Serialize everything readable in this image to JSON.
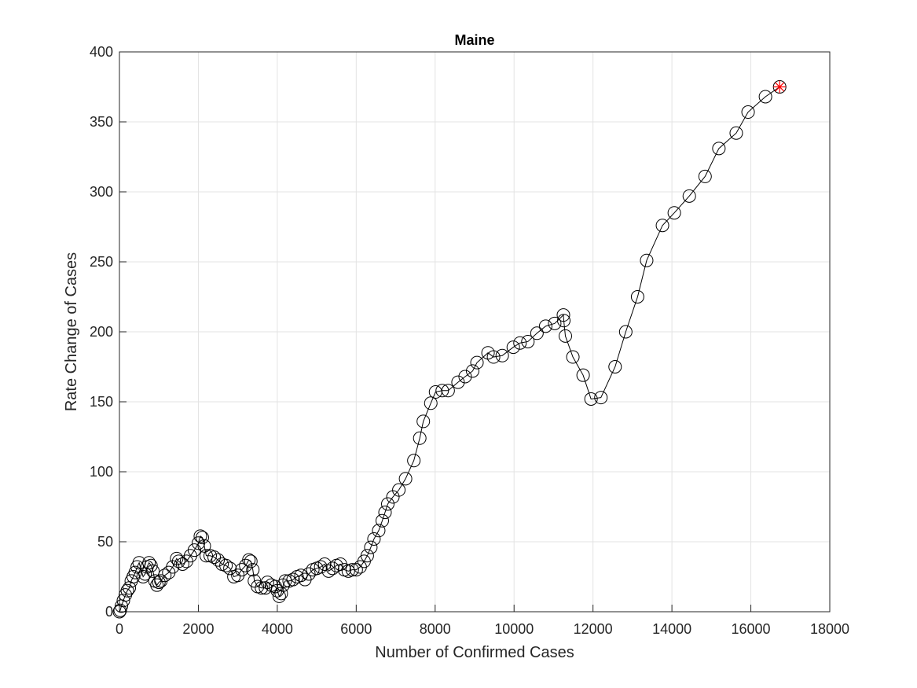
{
  "chart_data": {
    "type": "line",
    "title": "Maine",
    "x_label": "Number of Confirmed Cases",
    "y_label": "Rate Change of Cases",
    "series": [
      {
        "name": "Maine",
        "color": "#000000",
        "last_point_color": "#ff0000",
        "x": [
          0,
          20,
          50,
          100,
          150,
          200,
          250,
          300,
          350,
          400,
          450,
          500,
          600,
          650,
          700,
          750,
          800,
          850,
          900,
          950,
          1000,
          1050,
          1150,
          1250,
          1350,
          1450,
          1500,
          1600,
          1700,
          1800,
          1900,
          2000,
          2050,
          2100,
          2150,
          2200,
          2300,
          2400,
          2500,
          2600,
          2700,
          2800,
          2900,
          3000,
          3100,
          3200,
          3280,
          3330,
          3380,
          3420,
          3500,
          3600,
          3700,
          3750,
          3850,
          3950,
          4000,
          4050,
          4100,
          4150,
          4200,
          4300,
          4400,
          4500,
          4600,
          4700,
          4800,
          4900,
          5000,
          5100,
          5200,
          5300,
          5400,
          5500,
          5600,
          5700,
          5800,
          5900,
          6000,
          6100,
          6200,
          6280,
          6370,
          6450,
          6570,
          6660,
          6730,
          6800,
          6930,
          7080,
          7250,
          7460,
          7610,
          7700,
          7890,
          8010,
          8180,
          8330,
          8580,
          8760,
          8950,
          9060,
          9340,
          9480,
          9700,
          9980,
          10150,
          10350,
          10580,
          10800,
          11030,
          11250,
          11260,
          11300,
          11490,
          11750,
          11950,
          12200,
          12560,
          12830,
          13130,
          13360,
          13760,
          14060,
          14440,
          14840,
          15190,
          15630,
          15930,
          16370,
          16730
        ],
        "values": [
          0,
          1,
          4,
          8,
          12,
          15,
          17,
          22,
          25,
          28,
          32,
          35,
          25,
          27,
          32,
          35,
          33,
          29,
          22,
          19,
          21,
          22,
          26,
          28,
          32,
          38,
          36,
          34,
          36,
          40,
          44,
          49,
          54,
          53,
          47,
          40,
          40,
          39,
          37,
          34,
          33,
          31,
          25,
          26,
          30,
          33,
          37,
          36,
          30,
          22,
          18,
          17,
          17,
          21,
          19,
          18,
          15,
          11,
          13,
          19,
          22,
          22,
          23,
          25,
          26,
          23,
          27,
          30,
          31,
          32,
          34,
          29,
          31,
          33,
          34,
          30,
          29,
          30,
          30,
          32,
          36,
          40,
          46,
          52,
          58,
          65,
          71,
          77,
          82,
          87,
          95,
          108,
          124,
          136,
          149,
          157,
          158,
          158,
          164,
          168,
          172,
          178,
          185,
          182,
          183,
          189,
          192,
          193,
          199,
          204,
          206,
          212,
          208,
          197,
          182,
          169,
          152,
          153,
          175,
          200,
          225,
          251,
          276,
          285,
          297,
          311,
          331,
          342,
          357,
          368,
          375
        ]
      }
    ],
    "xlim": [
      0,
      18000
    ],
    "ylim": [
      0,
      400
    ],
    "xticks": [
      0,
      2000,
      4000,
      6000,
      8000,
      10000,
      12000,
      14000,
      16000,
      18000
    ],
    "yticks": [
      0,
      50,
      100,
      150,
      200,
      250,
      300,
      350,
      400
    ],
    "grid": true
  }
}
